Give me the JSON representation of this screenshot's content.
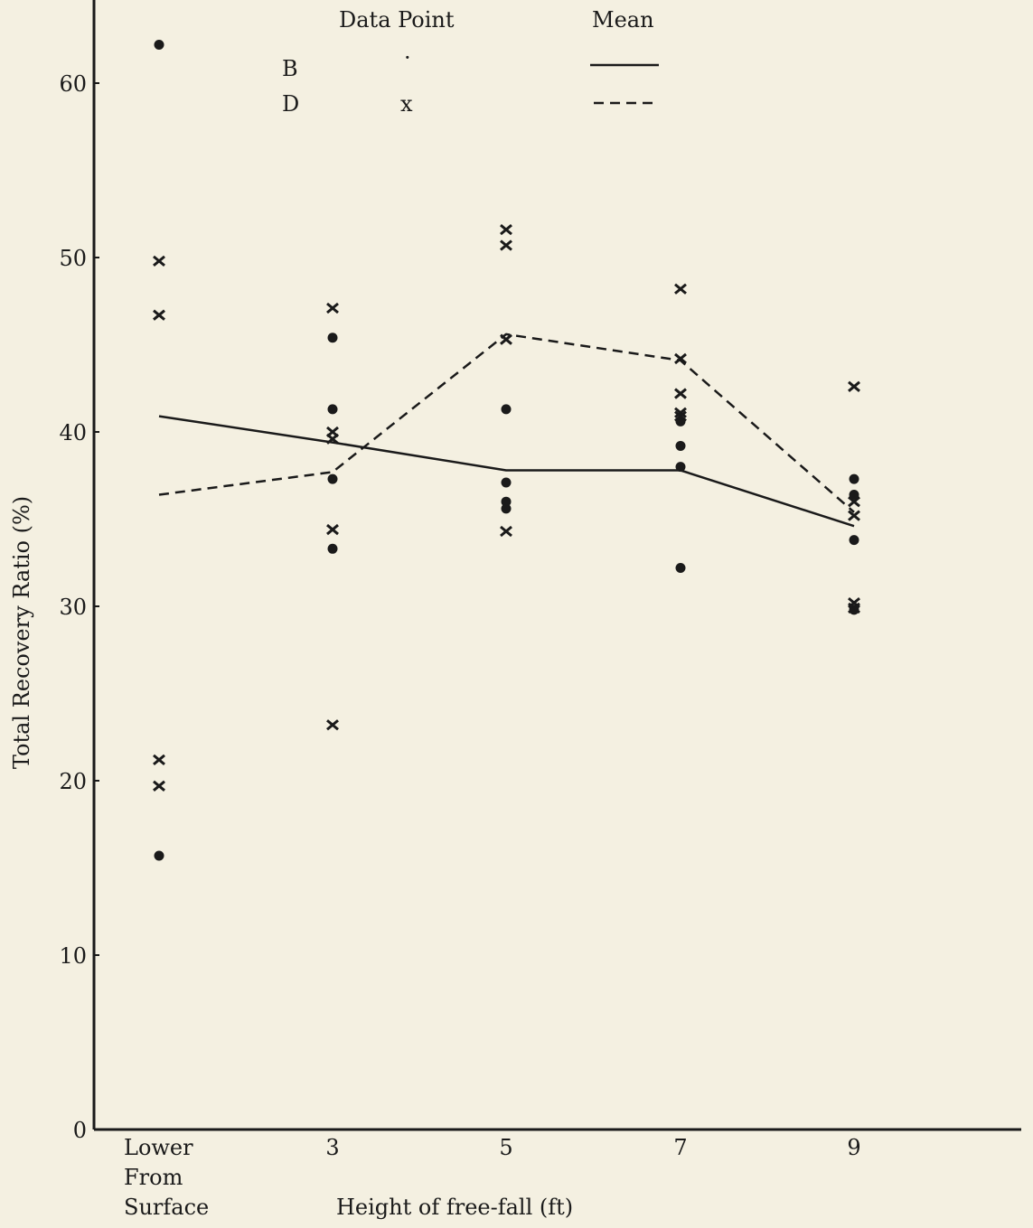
{
  "chart_data": {
    "type": "scatter",
    "title": "",
    "xlabel": "Height of free-fall (ft)",
    "ylabel": "Total Recovery Ratio (%)",
    "ylim": [
      0,
      65
    ],
    "yticks": [
      0,
      10,
      20,
      30,
      40,
      50,
      60
    ],
    "categories": [
      "Lower From Surface",
      "3",
      "5",
      "7",
      "9"
    ],
    "category_label_lines": [
      [
        "Lower",
        "From",
        "Surface"
      ],
      [
        "3"
      ],
      [
        "5"
      ],
      [
        "7"
      ],
      [
        "9"
      ]
    ],
    "legend": {
      "header_points": "Data Point",
      "header_mean": "Mean",
      "placement": "top",
      "entries": [
        {
          "label": "B",
          "marker": "·",
          "mean_style": "solid"
        },
        {
          "label": "D",
          "marker": "x",
          "mean_style": "dashed"
        }
      ]
    },
    "series": [
      {
        "name": "B",
        "marker": "dot",
        "points": [
          {
            "category": 0,
            "values": [
              62.2,
              15.7
            ]
          },
          {
            "category": 1,
            "values": [
              45.4,
              41.3,
              37.3,
              33.3
            ]
          },
          {
            "category": 2,
            "values": [
              41.3,
              37.1,
              36.0,
              35.6
            ]
          },
          {
            "category": 3,
            "values": [
              40.6,
              39.2,
              38.0,
              32.2
            ]
          },
          {
            "category": 4,
            "values": [
              37.3,
              36.4,
              33.8,
              29.8
            ]
          }
        ],
        "mean": [
          40.9,
          39.4,
          37.8,
          37.8,
          34.6
        ]
      },
      {
        "name": "D",
        "marker": "x",
        "points": [
          {
            "category": 0,
            "values": [
              49.8,
              46.7,
              21.2,
              19.7
            ]
          },
          {
            "category": 1,
            "values": [
              47.1,
              40.0,
              39.6,
              34.4,
              23.2
            ]
          },
          {
            "category": 2,
            "values": [
              51.6,
              50.7,
              45.3,
              34.3
            ]
          },
          {
            "category": 3,
            "values": [
              48.2,
              44.2,
              42.2,
              41.1,
              40.9
            ]
          },
          {
            "category": 4,
            "values": [
              42.6,
              36.0,
              35.2,
              30.2,
              29.9
            ]
          }
        ],
        "mean": [
          36.4,
          37.7,
          45.6,
          44.1,
          35.4
        ]
      }
    ],
    "colors": {
      "ink": "#1a1a1a",
      "paper": "#f4f0e1"
    }
  }
}
